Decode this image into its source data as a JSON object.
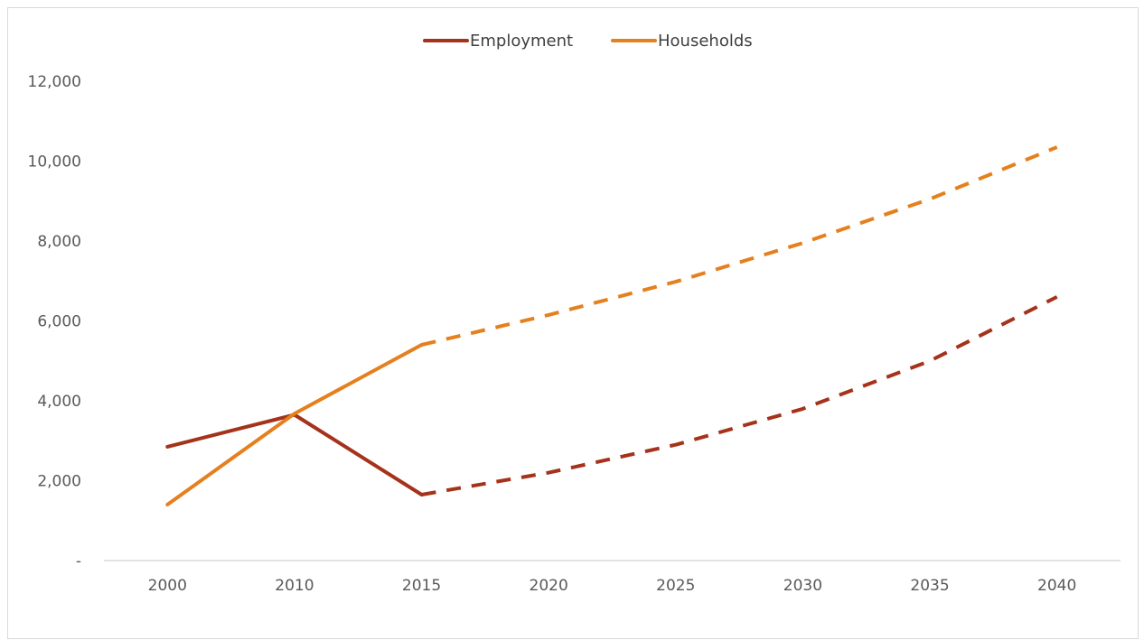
{
  "chart_data": {
    "type": "line",
    "title": "",
    "xlabel": "",
    "ylabel": "",
    "categories": [
      "2000",
      "2010",
      "2015",
      "2020",
      "2025",
      "2030",
      "2035",
      "2040"
    ],
    "y_ticks": [
      "-",
      "2,000",
      "4,000",
      "6,000",
      "8,000",
      "10,000",
      "12,000"
    ],
    "ylim": [
      0,
      12000
    ],
    "grid": false,
    "legend": {
      "position": "top"
    },
    "colors": {
      "Employment": "#a5321a",
      "Households": "#e5801e"
    },
    "series": [
      {
        "name": "Employment",
        "values": [
          2850,
          3650,
          1650,
          2200,
          2900,
          3800,
          5000,
          6600
        ],
        "style": {
          "solid_through_category": "2015",
          "dashed_after": "2015"
        }
      },
      {
        "name": "Households",
        "values": [
          1400,
          3680,
          5400,
          6150,
          6980,
          7950,
          9050,
          10350
        ],
        "style": {
          "solid_through_category": "2015",
          "dashed_after": "2015"
        }
      }
    ]
  }
}
